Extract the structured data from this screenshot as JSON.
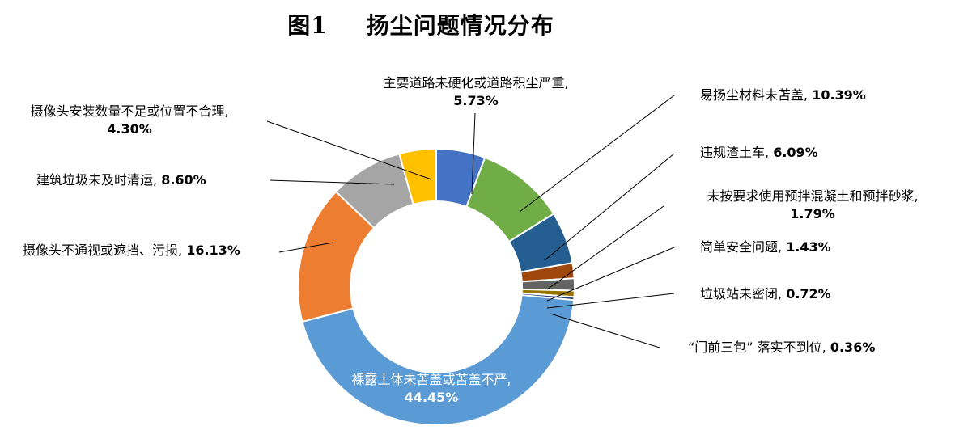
{
  "title": {
    "figure_label": "图1",
    "text": "扬尘问题情况分布"
  },
  "chart_data": {
    "type": "pie",
    "title": "图1 扬尘问题情况分布",
    "donut": true,
    "slices": [
      {
        "name": "主要道路未硬化或道路积尘严重",
        "value": 5.73,
        "label_value": "5.73%",
        "color": "#4472c4"
      },
      {
        "name": "易扬尘材料未苫盖",
        "value": 10.39,
        "label_value": "10.39%",
        "color": "#70ad47"
      },
      {
        "name": "违规渣土车",
        "value": 6.09,
        "label_value": "6.09%",
        "color": "#255e91"
      },
      {
        "name": "未按要求使用预拌混凝土和预拌砂浆",
        "value": 1.79,
        "label_value": "1.79%",
        "color": "#9e480e"
      },
      {
        "name": "简单安全问题",
        "value": 1.43,
        "label_value": "1.43%",
        "color": "#636363"
      },
      {
        "name": "垃圾站未密闭",
        "value": 0.72,
        "label_value": "0.72%",
        "color": "#997300"
      },
      {
        "name": "“门前三包” 落实不到位",
        "value": 0.36,
        "label_value": "0.36%",
        "color": "#264478"
      },
      {
        "name": "裸露土体未苫盖或苫盖不严",
        "value": 44.45,
        "label_value": "44.45%",
        "color": "#5b9bd5"
      },
      {
        "name": "摄像头不通视或遮挡、污损",
        "value": 16.13,
        "label_value": "16.13%",
        "color": "#ed7d31"
      },
      {
        "name": "建筑垃圾未及时清运",
        "value": 8.6,
        "label_value": "8.60%",
        "color": "#a5a5a5"
      },
      {
        "name": "摄像头安装数量不足或位置不合理",
        "value": 4.3,
        "label_value": "4.30%",
        "color": "#ffc000"
      }
    ]
  }
}
